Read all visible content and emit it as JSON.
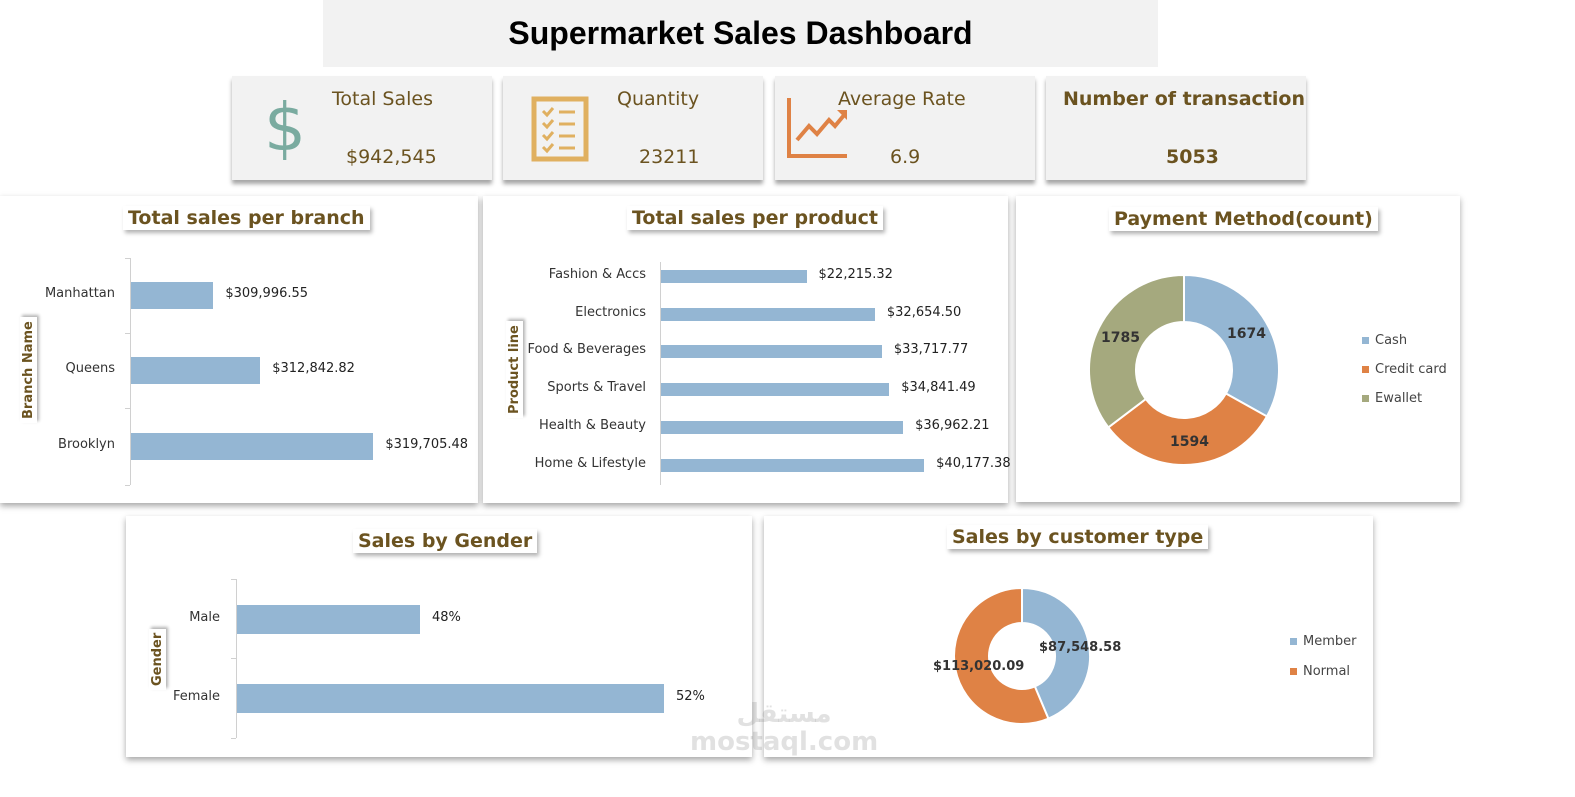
{
  "title": "Supermarket Sales Dashboard",
  "kpis": [
    {
      "label": "Total Sales",
      "value": "$942,545",
      "icon": "dollar-icon"
    },
    {
      "label": "Quantity",
      "value": "23211",
      "icon": "checklist-icon"
    },
    {
      "label": "Average Rate",
      "value": "6.9",
      "icon": "trend-chart-icon"
    },
    {
      "label": "Number of transaction",
      "value": "5053",
      "icon": ""
    }
  ],
  "colors": {
    "blue": "#94b6d3",
    "orange": "#df8245",
    "green": "#a5a97e",
    "title": "#6b5320"
  },
  "watermark": {
    "arabic": "مستقل",
    "latin": "mostaql.com"
  },
  "chart_data": [
    {
      "type": "bar",
      "orientation": "horizontal",
      "title": "Total sales per branch",
      "ylabel": "Branch Name",
      "categories": [
        "Manhattan",
        "Queens",
        "Brooklyn"
      ],
      "values": [
        309996.55,
        312842.82,
        319705.48
      ],
      "labels": [
        "$309,996.55",
        "$312,842.82",
        "$319,705.48"
      ],
      "xlim": [
        305000,
        325000
      ]
    },
    {
      "type": "bar",
      "orientation": "horizontal",
      "title": "Total sales per product",
      "ylabel": "Product line",
      "categories": [
        "Fashion & Accs",
        "Electronics",
        "Food & Beverages",
        "Sports & Travel",
        "Health & Beauty",
        "Home & Lifestyle"
      ],
      "values": [
        22215.32,
        32654.5,
        33717.77,
        34841.49,
        36962.21,
        40177.38
      ],
      "labels": [
        "$22,215.32",
        "$32,654.50",
        "$33,717.77",
        "$34,841.49",
        "$36,962.21",
        "$40,177.38"
      ],
      "xlim": [
        0,
        50000
      ]
    },
    {
      "type": "pie",
      "donut": true,
      "title": "Payment Method(count)",
      "categories": [
        "Cash",
        "Credit card",
        "Ewallet"
      ],
      "values": [
        1674,
        1594,
        1785
      ],
      "labels": [
        "1674",
        "1594",
        "1785"
      ],
      "legend": "right"
    },
    {
      "type": "bar",
      "orientation": "horizontal",
      "title": "Sales by Gender",
      "ylabel": "Gender",
      "categories": [
        "Male",
        "Female"
      ],
      "values": [
        48,
        52
      ],
      "labels": [
        "48%",
        "52%"
      ],
      "xlim": [
        45,
        55
      ]
    },
    {
      "type": "pie",
      "donut": true,
      "title": "Sales by customer type",
      "categories": [
        "Member",
        "Normal"
      ],
      "values": [
        87548.58,
        113020.09
      ],
      "labels": [
        "$87,548.58",
        "$113,020.09"
      ],
      "legend": "right"
    }
  ]
}
